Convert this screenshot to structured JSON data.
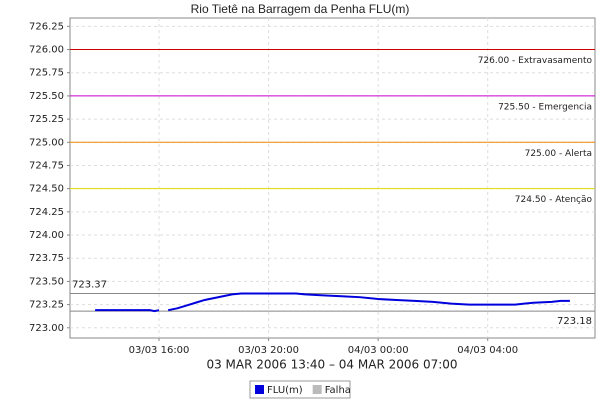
{
  "chart_data": {
    "type": "line",
    "title": "Rio Tietê na Barragem da Penha FLU(m)",
    "x_label": "03 MAR 2006 13:40 – 04 MAR 2006 07:00",
    "x": [
      "03/03 13:40",
      "03/03 14:00",
      "03/03 14:20",
      "03/03 14:40",
      "03/03 15:00",
      "03/03 15:20",
      "03/03 15:40",
      "03/03 15:50",
      "03/03 16:00",
      "03/03 16:10",
      "03/03 16:20",
      "03/03 16:40",
      "03/03 17:00",
      "03/03 17:20",
      "03/03 17:40",
      "03/03 18:00",
      "03/03 18:20",
      "03/03 18:40",
      "03/03 19:00",
      "03/03 19:40",
      "03/03 20:20",
      "03/03 21:00",
      "03/03 21:20",
      "03/03 22:00",
      "03/03 22:40",
      "03/03 23:20",
      "04/03 00:00",
      "04/03 00:40",
      "04/03 01:20",
      "04/03 02:00",
      "04/03 02:40",
      "04/03 03:20",
      "04/03 04:00",
      "04/03 05:00",
      "04/03 05:20",
      "04/03 05:40",
      "04/03 06:20",
      "04/03 06:40",
      "04/03 07:00"
    ],
    "series": [
      {
        "name": "FLU(m)",
        "color": "#0000dd",
        "values": [
          723.19,
          723.19,
          723.19,
          723.19,
          723.19,
          723.19,
          723.19,
          723.18,
          723.19,
          null,
          723.19,
          723.21,
          723.24,
          723.27,
          723.3,
          723.32,
          723.34,
          723.36,
          723.37,
          723.37,
          723.37,
          723.37,
          723.36,
          723.35,
          723.34,
          723.33,
          723.31,
          723.3,
          723.29,
          723.28,
          723.26,
          723.25,
          723.25,
          723.25,
          723.26,
          723.27,
          723.28,
          723.29,
          723.29
        ]
      },
      {
        "name": "Falha",
        "color": "#bbbbbb",
        "values": [
          null,
          null,
          null,
          null,
          null,
          null,
          null,
          null,
          null,
          null,
          null,
          null,
          null,
          null,
          null,
          null,
          null,
          null,
          null,
          null,
          null,
          null,
          null,
          null,
          null,
          null,
          null,
          null,
          null,
          null,
          null,
          null,
          null,
          null,
          null,
          null,
          null,
          null,
          null
        ]
      }
    ],
    "xlim": [
      "03/03 12:45",
      "04/03 07:55"
    ],
    "xticks": [
      "03/03 16:00",
      "03/03 20:00",
      "04/03 00:00",
      "04/03 04:00"
    ],
    "ylim": [
      722.89,
      726.34
    ],
    "yticks": [
      {
        "value": 723,
        "label": "723.00"
      },
      {
        "value": 723.25,
        "label": "723.25"
      },
      {
        "value": 723.5,
        "label": "723.50"
      },
      {
        "value": 723.75,
        "label": "723.75"
      },
      {
        "value": 724,
        "label": "724.00"
      },
      {
        "value": 724.25,
        "label": "724.25"
      },
      {
        "value": 724.5,
        "label": "724.50"
      },
      {
        "value": 724.75,
        "label": "724.75"
      },
      {
        "value": 725,
        "label": "725.00"
      },
      {
        "value": 725.25,
        "label": "725.25"
      },
      {
        "value": 725.5,
        "label": "725.50"
      },
      {
        "value": 725.75,
        "label": "725.75"
      },
      {
        "value": 726,
        "label": "726.00"
      },
      {
        "value": 726.25,
        "label": "726.25"
      }
    ],
    "grid": true,
    "thresholds": [
      {
        "value": 726,
        "label": "726.00 - Extravasamento",
        "color": "#cc0000"
      },
      {
        "value": 725.5,
        "label": "725.50 - Emergencia",
        "color": "#cc00cc"
      },
      {
        "value": 725,
        "label": "725.00 - Alerta",
        "color": "#ee8800"
      },
      {
        "value": 724.5,
        "label": "724.50 - Atenção",
        "color": "#dddd00"
      }
    ],
    "max_line": 723.37,
    "min_line": 723.18
  }
}
